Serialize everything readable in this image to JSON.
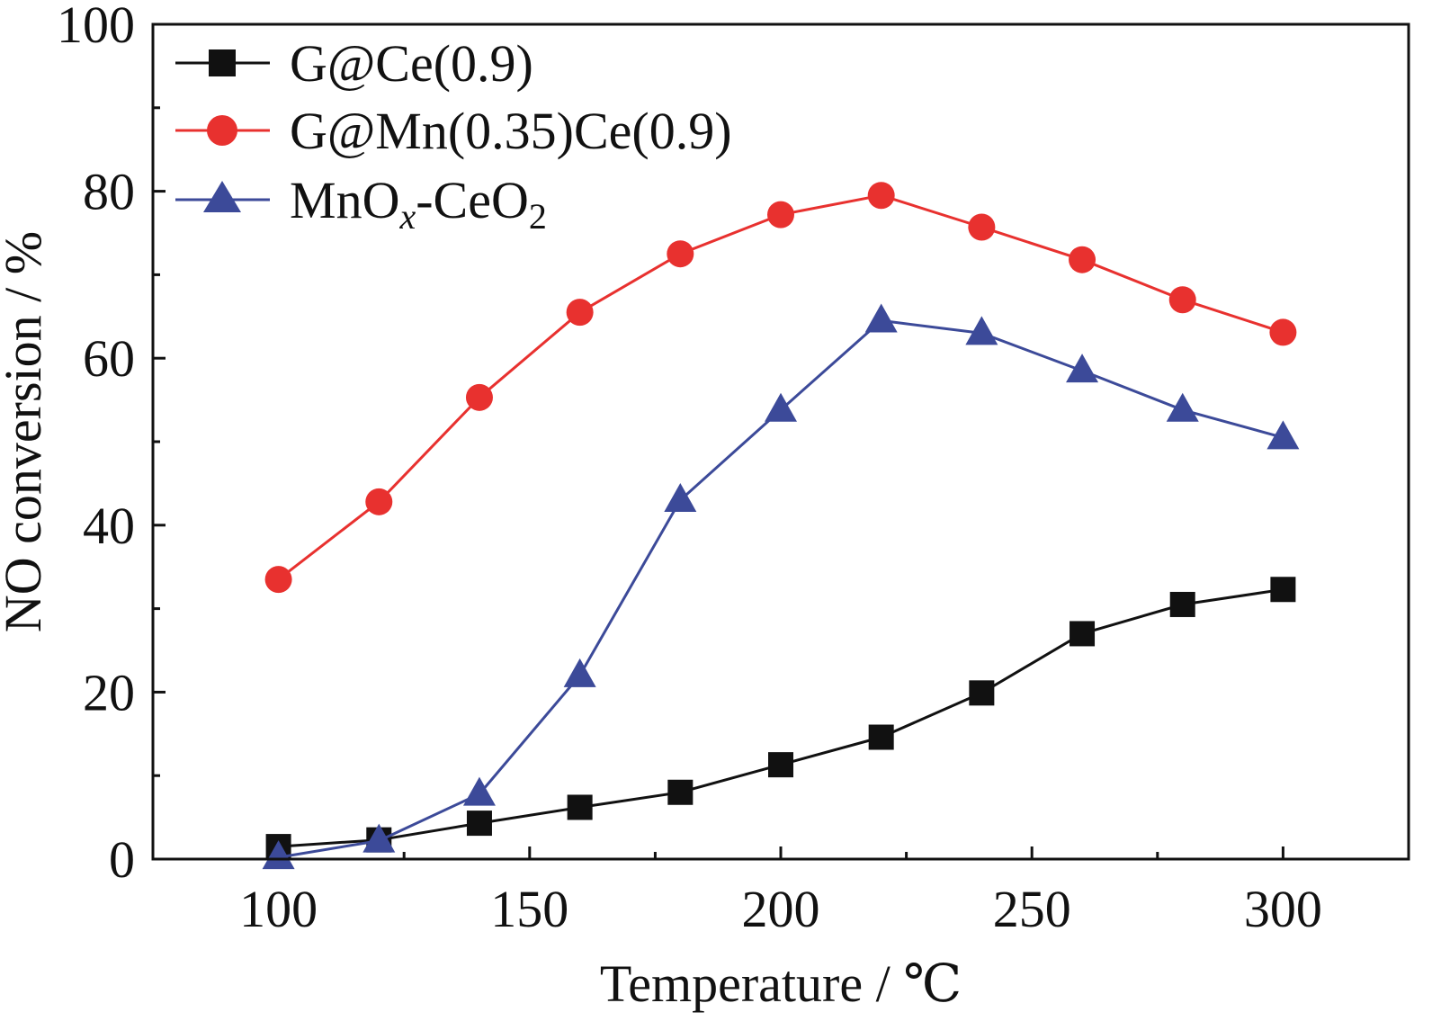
{
  "chart_data": {
    "type": "line",
    "xlabel": "Temperature / ℃",
    "ylabel": "NO conversion / %",
    "xlim": [
      75,
      325
    ],
    "ylim": [
      0,
      100
    ],
    "x_ticks": [
      100,
      150,
      200,
      250,
      300
    ],
    "y_ticks": [
      0,
      20,
      40,
      60,
      80,
      100
    ],
    "grid": false,
    "legend_position": "top-left",
    "x": [
      100,
      120,
      140,
      160,
      180,
      200,
      220,
      240,
      260,
      280,
      300
    ],
    "series": [
      {
        "name": "G@Ce(0.9)",
        "legend": {
          "base": "G@Ce(0.9)",
          "sub": "",
          "mid": "",
          "sub2": ""
        },
        "color": "#111111",
        "marker": "square",
        "values": [
          1.5,
          2.3,
          4.3,
          6.2,
          8.0,
          11.3,
          14.6,
          19.9,
          27.0,
          30.5,
          32.3
        ]
      },
      {
        "name": "G@Mn(0.35)Ce(0.9)",
        "legend": {
          "base": "G@Mn(0.35)Ce(0.9)",
          "sub": "",
          "mid": "",
          "sub2": ""
        },
        "color": "#e8312f",
        "marker": "circle",
        "values": [
          33.5,
          42.8,
          55.3,
          65.5,
          72.5,
          77.2,
          79.5,
          75.7,
          71.8,
          67.0,
          63.1
        ]
      },
      {
        "name": "MnOx-CeO2",
        "legend": {
          "base": "MnO",
          "sub": "x",
          "mid": "-CeO",
          "sub2": "2"
        },
        "color": "#3c4a99",
        "marker": "triangle",
        "values": [
          0.2,
          2.2,
          7.8,
          22.0,
          43.0,
          53.8,
          64.5,
          63.0,
          58.5,
          53.8,
          50.5
        ]
      }
    ]
  }
}
